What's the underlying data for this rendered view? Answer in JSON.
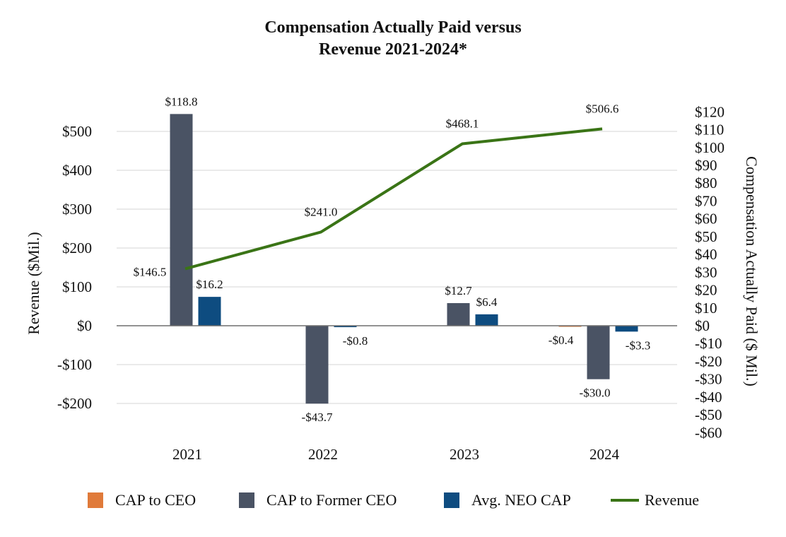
{
  "chart_data": {
    "type": "bar",
    "title_lines": [
      "Compensation Actually Paid versus",
      "Revenue 2021-2024*"
    ],
    "categories": [
      "2021",
      "2022",
      "2023",
      "2024"
    ],
    "y_left": {
      "label": "Revenue ($Mil.)",
      "range": [
        -200,
        500
      ],
      "ticks": [
        500,
        400,
        300,
        200,
        100,
        0,
        -100,
        -200
      ],
      "tick_labels": [
        "$500",
        "$400",
        "$300",
        "$200",
        "$100",
        "$0",
        "-$100",
        "-$200"
      ]
    },
    "y_right": {
      "label": "Compensation Actually Paid ($ Mil.)",
      "range": [
        -60,
        120
      ],
      "ticks": [
        120,
        110,
        100,
        90,
        80,
        70,
        60,
        50,
        40,
        30,
        20,
        10,
        0,
        -10,
        -20,
        -30,
        -40,
        -50,
        -60
      ],
      "tick_labels": [
        "$120",
        "$110",
        "$100",
        "$90",
        "$80",
        "$70",
        "$60",
        "$50",
        "$40",
        "$30",
        "$20",
        "$10",
        "$0",
        "-$10",
        "-$20",
        "-$30",
        "-$40",
        "-$50",
        "-$60"
      ]
    },
    "bar_series": [
      {
        "name": "CAP to CEO",
        "color": "#E07A3A",
        "axis": "right",
        "values": [
          null,
          null,
          null,
          -0.4
        ],
        "labels": [
          "",
          "",
          "",
          "-$0.4"
        ]
      },
      {
        "name": "CAP to Former CEO",
        "color": "#4A5364",
        "axis": "right",
        "values": [
          118.8,
          -43.7,
          12.7,
          -30.0
        ],
        "labels": [
          "$118.8",
          "-$43.7",
          "$12.7",
          "-$30.0"
        ]
      },
      {
        "name": "Avg. NEO CAP",
        "color": "#0E4C80",
        "axis": "right",
        "values": [
          16.2,
          -0.8,
          6.4,
          -3.3
        ],
        "labels": [
          "$16.2",
          "-$0.8",
          "$6.4",
          "-$3.3"
        ]
      }
    ],
    "line_series": {
      "name": "Revenue",
      "color": "#3A7416",
      "axis": "left",
      "values": [
        146.5,
        241.0,
        468.1,
        506.6
      ],
      "labels": [
        "$146.5",
        "$241.0",
        "$468.1",
        "$506.6"
      ]
    },
    "grid": true,
    "legend_position": "bottom"
  }
}
